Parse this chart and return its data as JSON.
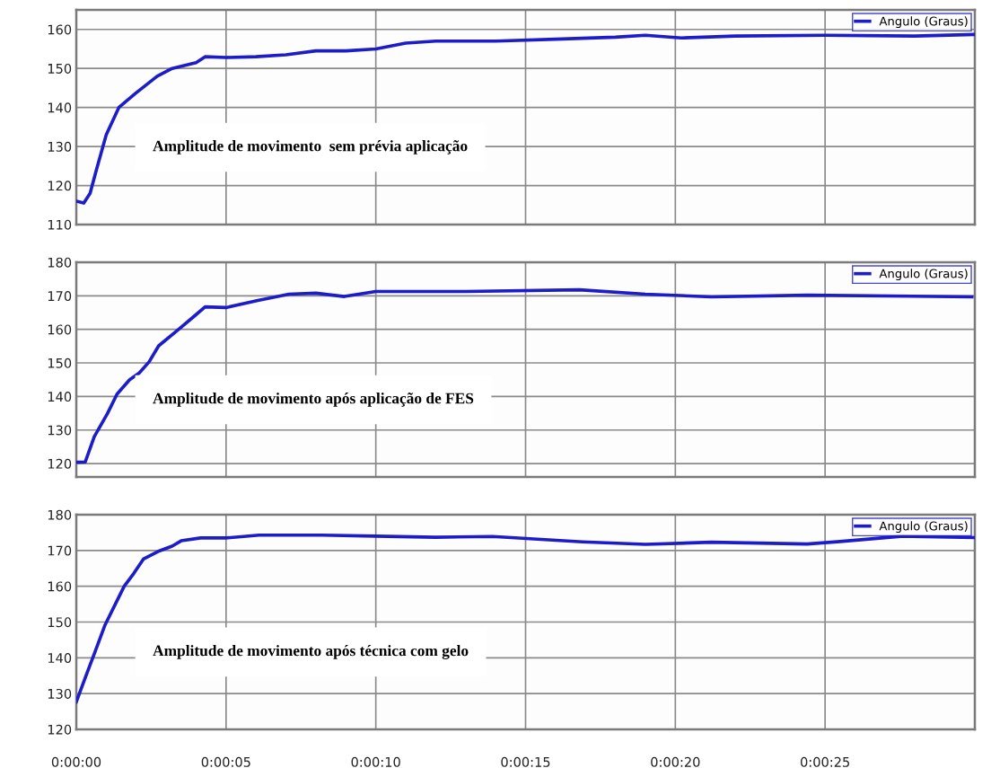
{
  "chart_data": [
    {
      "type": "line",
      "annotations": [
        "Amplitude de movimento  sem prévia aplicação"
      ],
      "x": [
        0,
        0.25,
        0.46,
        0.67,
        1.0,
        1.42,
        1.96,
        2.7,
        3.2,
        4.0,
        4.3,
        5,
        6,
        7,
        8,
        9,
        10,
        11,
        12,
        14,
        16,
        18,
        19,
        20.2,
        22,
        25,
        28,
        30
      ],
      "series": [
        {
          "name": "Angulo (Graus)",
          "color": "#1c1cc8",
          "values": [
            116,
            115.5,
            118,
            124,
            133,
            140,
            143.5,
            148,
            150,
            151.5,
            153,
            152.8,
            153,
            153.5,
            154.5,
            154.5,
            155,
            156.5,
            157,
            157,
            157.5,
            158,
            158.5,
            157.8,
            158.3,
            158.5,
            158.3,
            158.7
          ]
        }
      ],
      "xlim": [
        0,
        30
      ],
      "ylim": [
        110,
        165
      ],
      "yticks": [
        110,
        120,
        130,
        140,
        150,
        160
      ],
      "xticks": [
        {
          "value": 0,
          "label": null
        },
        {
          "value": 5,
          "label": null
        },
        {
          "value": 10,
          "label": null
        },
        {
          "value": 15,
          "label": null
        },
        {
          "value": 20,
          "label": null
        },
        {
          "value": 25,
          "label": null
        }
      ],
      "grid": true,
      "legend": "top right",
      "tick_labels": "y"
    },
    {
      "type": "line",
      "annotations": [
        "Amplitude de movimento após aplicação de FES"
      ],
      "x": [
        0,
        0.3,
        0.6,
        1.04,
        1.36,
        1.78,
        2.1,
        2.43,
        2.75,
        3.4,
        3.92,
        4.3,
        5,
        6.06,
        7.1,
        8,
        8.95,
        10,
        13,
        16.8,
        19,
        21.2,
        24.4,
        29.9
      ],
      "series": [
        {
          "name": "Angulo (Graus)",
          "color": "#1c1cc8",
          "values": [
            120.4,
            120.5,
            128,
            134.9,
            140.7,
            145,
            147,
            150.3,
            155.1,
            159.9,
            163.8,
            166.7,
            166.5,
            168.6,
            170.5,
            170.8,
            169.8,
            171.3,
            171.3,
            171.8,
            170.5,
            169.7,
            170.2,
            169.7
          ]
        }
      ],
      "xlim": [
        0,
        30
      ],
      "ylim": [
        116,
        180
      ],
      "yticks": [
        120,
        130,
        140,
        150,
        160,
        170,
        180
      ],
      "xticks": [
        {
          "value": 0,
          "label": null
        },
        {
          "value": 5,
          "label": null
        },
        {
          "value": 10,
          "label": null
        },
        {
          "value": 15,
          "label": null
        },
        {
          "value": 20,
          "label": null
        },
        {
          "value": 25,
          "label": null
        }
      ],
      "grid": true,
      "legend": "top right",
      "tick_labels": "y"
    },
    {
      "type": "line",
      "annotations": [
        "Amplitude de movimento após técnica com gelo"
      ],
      "x": [
        0,
        0.32,
        0.64,
        0.96,
        1.28,
        1.6,
        1.92,
        2.24,
        2.78,
        3.2,
        3.5,
        4.15,
        5,
        6.1,
        8.2,
        10,
        12,
        13.9,
        16.9,
        19,
        21.2,
        24.4,
        25.5,
        27.6,
        30
      ],
      "series": [
        {
          "name": "Angulo (Graus)",
          "color": "#1c1cc8",
          "values": [
            127.7,
            134.9,
            142,
            149.2,
            154.6,
            160,
            163.6,
            167.6,
            169.9,
            171.2,
            172.7,
            173.5,
            173.5,
            174.3,
            174.3,
            174,
            173.7,
            173.9,
            172.4,
            171.7,
            172.3,
            171.8,
            172.5,
            174,
            173.6
          ]
        }
      ],
      "xlim": [
        0,
        30
      ],
      "ylim": [
        120,
        180
      ],
      "yticks": [
        120,
        130,
        140,
        150,
        160,
        170,
        180
      ],
      "xticks": [
        {
          "value": 0,
          "label": "0:00:00"
        },
        {
          "value": 5,
          "label": "0:00:05"
        },
        {
          "value": 10,
          "label": "0:00:10"
        },
        {
          "value": 15,
          "label": "0:00:15"
        },
        {
          "value": 20,
          "label": "0:00:20"
        },
        {
          "value": 25,
          "label": "0:00:25"
        }
      ],
      "grid": true,
      "legend": "top right"
    }
  ]
}
